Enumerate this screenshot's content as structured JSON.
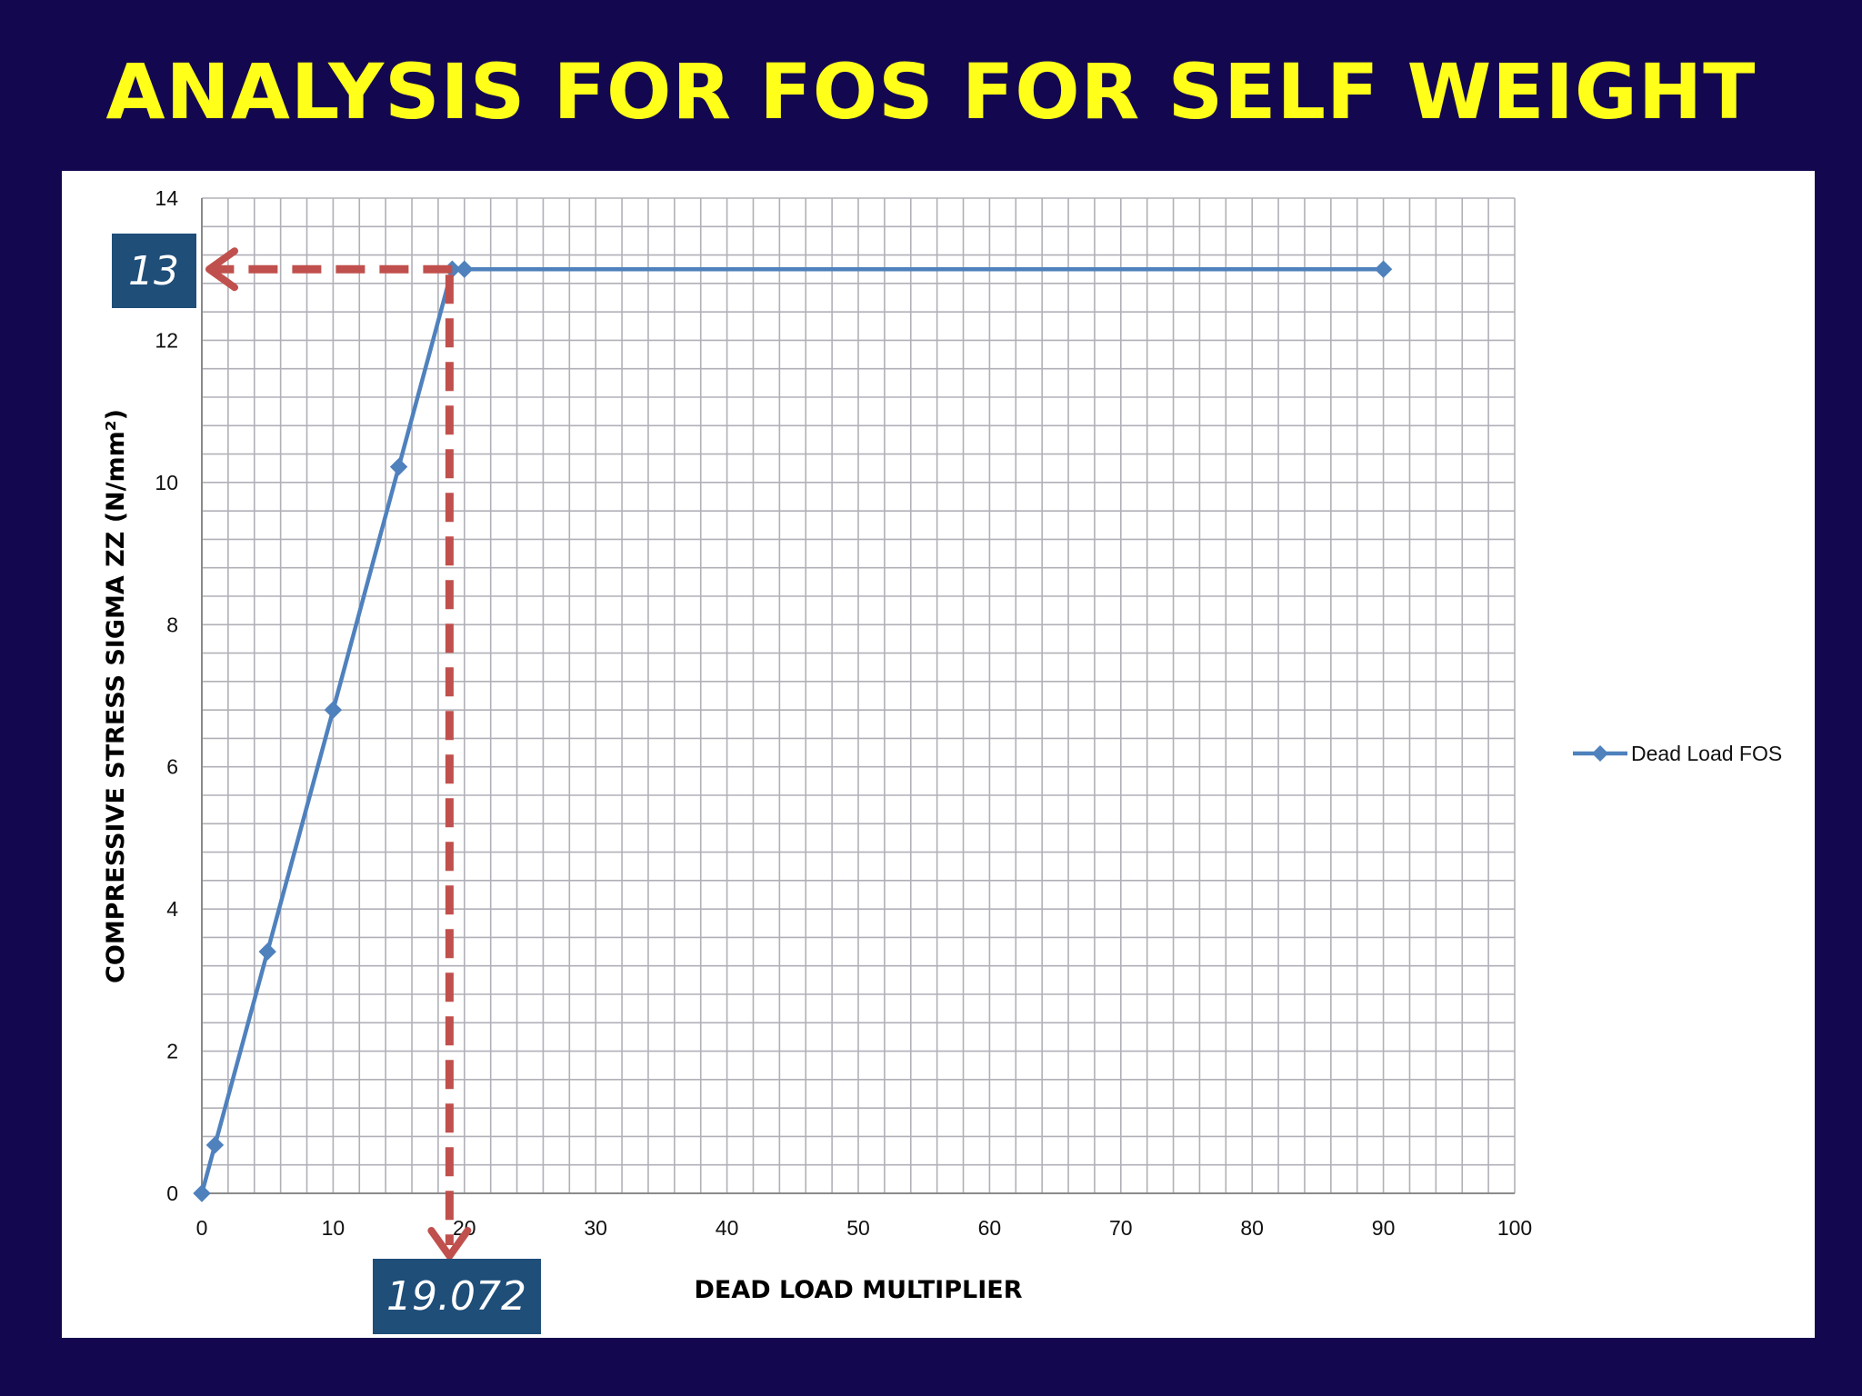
{
  "slide_title": "ANALYSIS FOR FOS FOR SELF WEIGHT",
  "colors": {
    "background": "#130850",
    "title": "#ffff1a",
    "series": "#4f81bd",
    "guide": "#c0504d",
    "callout": "#1f4e79",
    "grid": "#b0b0b8"
  },
  "chart_data": {
    "type": "line",
    "title": "",
    "xlabel": "DEAD LOAD MULTIPLIER",
    "ylabel": "COMPRESSIVE STRESS SIGMA ZZ (N/mm²)",
    "xlim": [
      0,
      100
    ],
    "ylim": [
      0,
      14
    ],
    "x_ticks": [
      0,
      10,
      20,
      30,
      40,
      50,
      60,
      70,
      80,
      90,
      100
    ],
    "y_ticks": [
      0,
      2,
      4,
      6,
      8,
      10,
      12,
      14
    ],
    "grid": true,
    "legend_position": "right",
    "series": [
      {
        "name": "Dead Load FOS",
        "marker": "diamond",
        "x": [
          0,
          1,
          5,
          10,
          15,
          19.072,
          20,
          90
        ],
        "y": [
          0,
          0.68,
          3.4,
          6.8,
          10.22,
          13,
          13,
          13
        ]
      }
    ],
    "annotations": {
      "y_callout": {
        "label": "13",
        "value": 13
      },
      "x_callout": {
        "label": "19.072",
        "value": 19.072
      }
    }
  }
}
